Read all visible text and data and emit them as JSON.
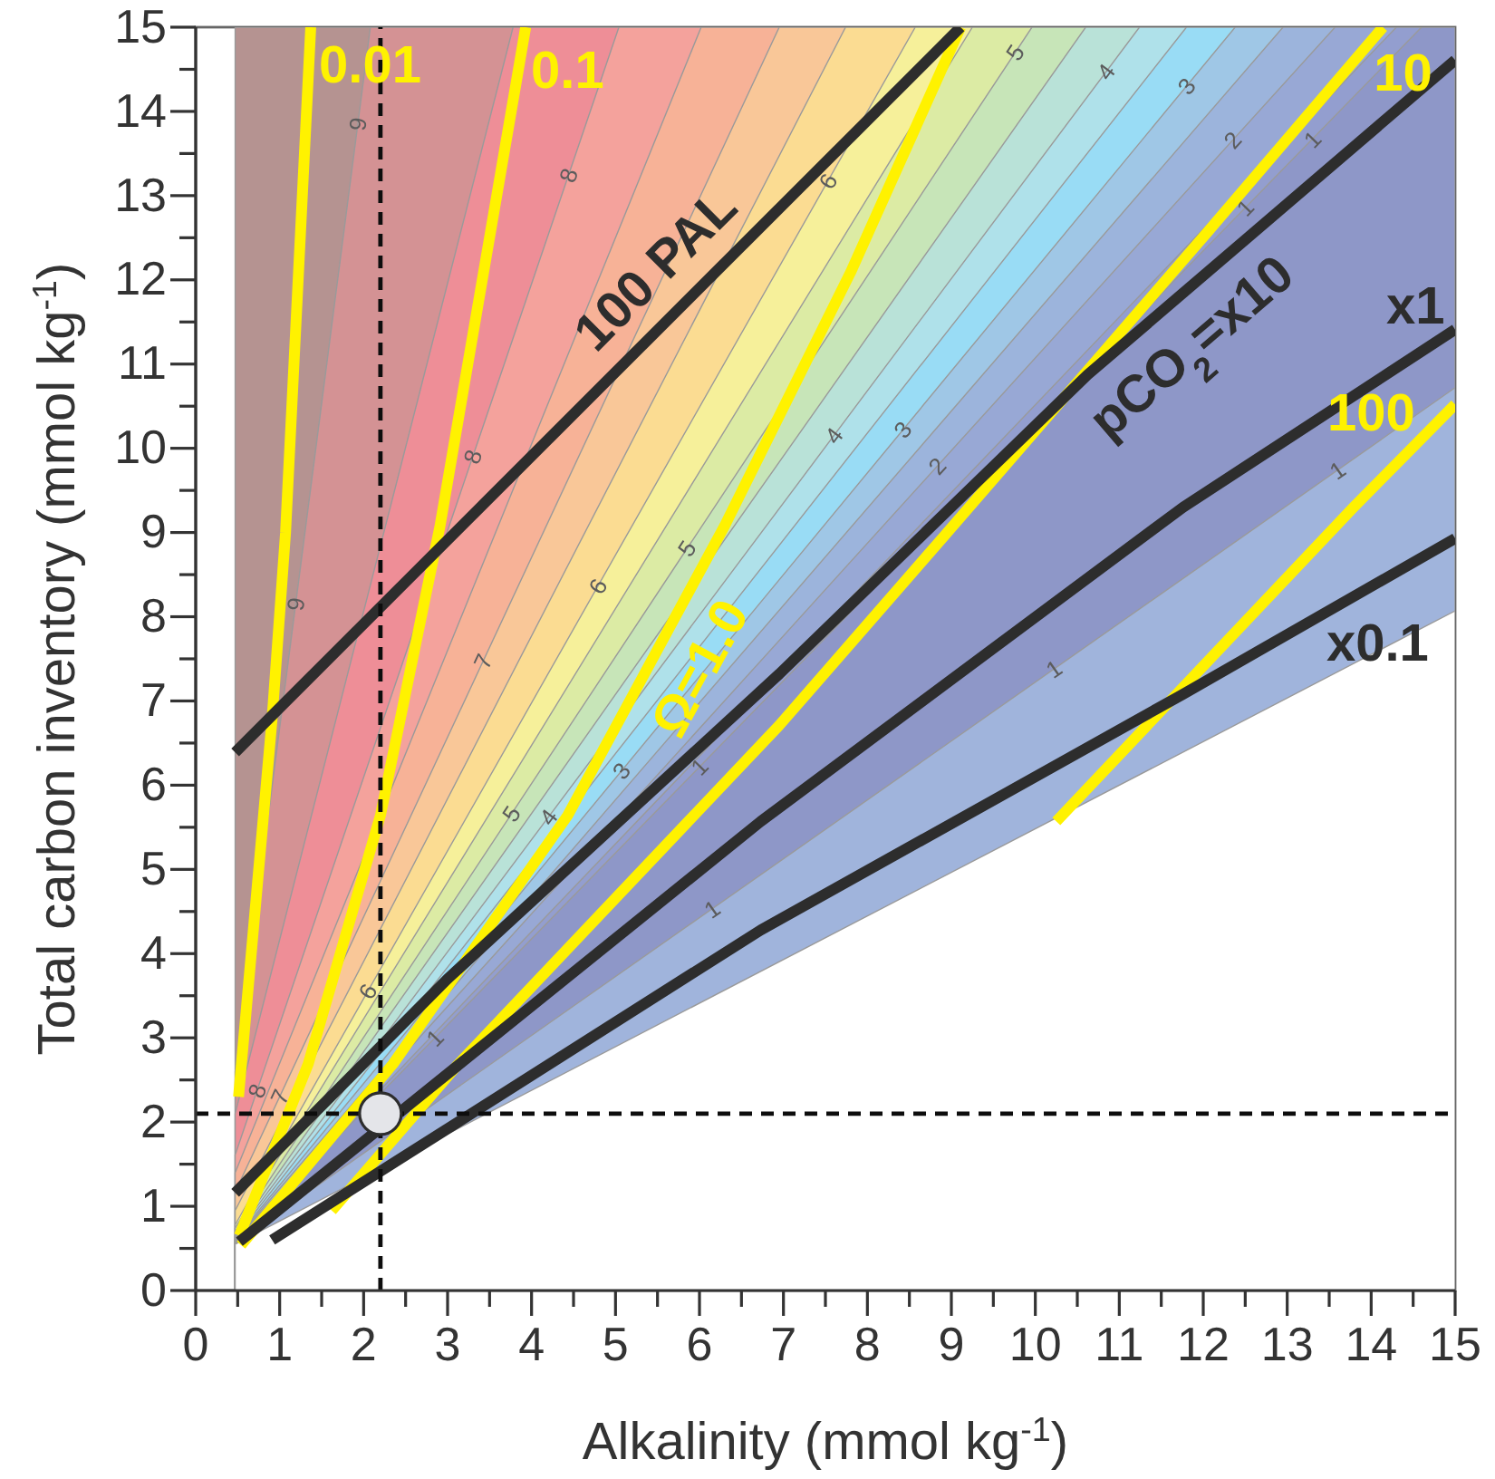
{
  "chart_data": {
    "type": "line",
    "xlabel": "Alkalinity (mmol kg$^{-1}$)",
    "ylabel": "Total carbon inventory (mmol kg$^{-1}$)",
    "xlim": [
      0,
      15
    ],
    "ylim": [
      0,
      15
    ],
    "xticks": [
      0,
      {
        "value": 0.5,
        "label": null
      },
      1,
      {
        "value": 1.5,
        "label": null
      },
      2,
      {
        "value": 2.5,
        "label": null
      },
      3,
      {
        "value": 3.5,
        "label": null
      },
      4,
      {
        "value": 4.5,
        "label": null
      },
      5,
      {
        "value": 5.5,
        "label": null
      },
      6,
      {
        "value": 6.5,
        "label": null
      },
      7,
      {
        "value": 7.5,
        "label": null
      },
      8,
      {
        "value": 8.5,
        "label": null
      },
      9,
      {
        "value": 9.5,
        "label": null
      },
      10,
      {
        "value": 10.5,
        "label": null
      },
      11,
      {
        "value": 11.5,
        "label": null
      },
      12,
      {
        "value": 12.5,
        "label": null
      },
      13,
      {
        "value": 13.5,
        "label": null
      },
      14,
      {
        "value": 14.5,
        "label": null
      },
      15
    ],
    "yticks": [
      0,
      {
        "value": 0.5,
        "label": null
      },
      1,
      {
        "value": 1.5,
        "label": null
      },
      2,
      {
        "value": 2.5,
        "label": null
      },
      3,
      {
        "value": 3.5,
        "label": null
      },
      4,
      {
        "value": 4.5,
        "label": null
      },
      5,
      {
        "value": 5.5,
        "label": null
      },
      6,
      {
        "value": 6.5,
        "label": null
      },
      7,
      {
        "value": 7.5,
        "label": null
      },
      8,
      {
        "value": 8.5,
        "label": null
      },
      9,
      {
        "value": 9.5,
        "label": null
      },
      10,
      {
        "value": 10.5,
        "label": null
      },
      11,
      {
        "value": 11.5,
        "label": null
      },
      12,
      {
        "value": 12.5,
        "label": null
      },
      13,
      {
        "value": 13.5,
        "label": null
      },
      14,
      {
        "value": 14.5,
        "label": null
      },
      15
    ],
    "series": [
      {
        "type": "area",
        "color": "#b59391",
        "x": [
          0.47,
          2.08
        ],
        "values": [
          15,
          15
        ]
      },
      {
        "type": "area",
        "color": "#d49294",
        "x": [
          0.47,
          2.08,
          3.78
        ],
        "values": [
          2.6,
          15,
          15
        ]
      },
      {
        "type": "area",
        "color": "#ee8e97",
        "x": [
          0.47,
          3.78,
          5.04
        ],
        "values": [
          2.1,
          15,
          15
        ]
      },
      {
        "type": "area",
        "color": "#f4a29c",
        "x": [
          0.47,
          5.04,
          6.02
        ],
        "values": [
          1.61,
          15,
          15
        ]
      },
      {
        "type": "area",
        "color": "#f7b297",
        "x": [
          0.47,
          6.02,
          6.95
        ],
        "values": [
          1.4,
          15,
          15
        ]
      },
      {
        "type": "area",
        "color": "#f9c798",
        "x": [
          0.47,
          6.95,
          7.74
        ],
        "values": [
          1.17,
          15,
          15
        ]
      },
      {
        "type": "area",
        "color": "#fbdc92",
        "x": [
          0.47,
          7.74,
          8.57
        ],
        "values": [
          0.95,
          15,
          15
        ]
      },
      {
        "type": "area",
        "color": "#f6f09a",
        "x": [
          0.47,
          8.57,
          9.25
        ],
        "values": [
          0.78,
          15,
          15
        ]
      },
      {
        "type": "area",
        "color": "#dceba4",
        "x": [
          0.47,
          9.25,
          9.96
        ],
        "values": [
          0.74,
          15,
          15
        ]
      },
      {
        "type": "area",
        "color": "#c7e5b8",
        "x": [
          0.47,
          9.96,
          10.6
        ],
        "values": [
          0.7,
          15,
          15
        ]
      },
      {
        "type": "area",
        "color": "#b9e2d8",
        "x": [
          0.47,
          10.6,
          11.24
        ],
        "values": [
          0.67,
          15,
          15
        ]
      },
      {
        "type": "area",
        "color": "#afe1ea",
        "x": [
          0.47,
          11.24,
          11.8
        ],
        "values": [
          0.65,
          15,
          15
        ]
      },
      {
        "type": "area",
        "color": "#99dcf5",
        "x": [
          0.47,
          11.8,
          12.38
        ],
        "values": [
          0.63,
          15,
          15
        ]
      },
      {
        "type": "area",
        "color": "#9fc7e6",
        "x": [
          0.47,
          12.38,
          12.95
        ],
        "values": [
          0.61,
          15,
          15
        ]
      },
      {
        "type": "area",
        "color": "#9cb4dc",
        "x": [
          0.47,
          12.95,
          13.57
        ],
        "values": [
          0.6,
          15,
          15
        ]
      },
      {
        "type": "area",
        "color": "#98a8d5",
        "x": [
          0.47,
          13.57,
          14.3
        ],
        "values": [
          0.59,
          15,
          15
        ]
      },
      {
        "type": "area",
        "color": "#939ecf",
        "x": [
          0.47,
          14.3,
          14.6
        ],
        "values": [
          0.58,
          15,
          15
        ]
      },
      {
        "type": "area",
        "color": "#8e97c8",
        "x": [
          0.47,
          14.6,
          15
        ],
        "values": [
          0.57,
          15,
          15
        ]
      },
      {
        "type": "area",
        "color": "#a0b4dc",
        "x": [
          0.47,
          15
        ],
        "values": [
          0.56,
          10.72
        ]
      },
      {
        "type": "area",
        "color": "#ffffff",
        "x": [
          0.47,
          15
        ],
        "values": [
          0.55,
          8.07
        ]
      },
      {
        "color": "#fff200",
        "x": [
          0.51,
          0.91,
          1.07,
          1.37
        ],
        "values": [
          2.3,
          6.79,
          9.0,
          15
        ]
      },
      {
        "color": "#fff200",
        "x": [
          0.52,
          1.34,
          2.2,
          2.91,
          3.93
        ],
        "values": [
          0.65,
          2.69,
          5.64,
          9.08,
          15
        ]
      },
      {
        "color": "#fff200",
        "x": [
          0.54,
          2.35,
          4.43,
          6.3,
          7.8,
          9.11
        ],
        "values": [
          0.54,
          2.69,
          5.64,
          9.08,
          12.09,
          15
        ]
      },
      {
        "color": "#fff200",
        "x": [
          1.62,
          3.13,
          6.95,
          8.89,
          12.07,
          14.14
        ],
        "values": [
          0.95,
          2.69,
          6.71,
          8.93,
          12.59,
          15
        ]
      },
      {
        "color": "#fff200",
        "x": [
          15,
          13.79,
          10.25
        ],
        "values": [
          10.52,
          9.3,
          5.57
        ]
      },
      {
        "color": "#2d2d2d",
        "x": [
          9.11,
          0.47
        ],
        "values": [
          15,
          6.39
        ]
      },
      {
        "color": "#2d2d2d",
        "x": [
          0.47,
          3.0,
          6.95,
          10.62,
          15
        ],
        "values": [
          1.16,
          3.7,
          7.32,
          10.87,
          14.61
        ]
      },
      {
        "color": "#2d2d2d",
        "x": [
          15,
          11.76,
          6.73,
          0.52
        ],
        "values": [
          11.41,
          9.3,
          5.57,
          0.58
        ]
      },
      {
        "color": "#2d2d2d",
        "x": [
          0.91,
          6.73,
          11.76,
          15
        ],
        "values": [
          0.6,
          4.28,
          7.08,
          8.93
        ]
      },
      {
        "type": "scatter",
        "color": "#e4e5e9",
        "marker": "circle",
        "x": [
          2.2
        ],
        "values": [
          2.1
        ]
      }
    ],
    "ref_lines": [
      {
        "axis": "x",
        "value": 2.2,
        "color": "#0d0d0d",
        "line_style": "dashed"
      },
      {
        "axis": "y",
        "value": 2.1,
        "color": "#0d0d0d",
        "line_style": "dashed"
      }
    ],
    "annotations": [
      {
        "text": "0.01",
        "x": 1.35,
        "y": 14.6
      },
      {
        "text": "0.1",
        "x": 3.86,
        "y": 14.59
      },
      {
        "text": "Ω=1.0",
        "x": 5.52,
        "y": 7.65
      },
      {
        "text": "10",
        "x": 13.98,
        "y": 14.81
      },
      {
        "text": "100",
        "x": 14.46,
        "y": 9.98
      },
      {
        "text": "100 PAL",
        "x": 5.85,
        "y": 11.75
      },
      {
        "text": "pCO$_{2}$=x10",
        "x": 11.5,
        "y": 11.62
      },
      {
        "text": "x1",
        "x": 14.8,
        "y": 11.28
      },
      {
        "text": "x0.1",
        "x": 13.77,
        "y": 8.23
      },
      {
        "text": "9",
        "x": 1.93,
        "y": 13.85
      },
      {
        "text": "8",
        "x": 4.44,
        "y": 13.24
      },
      {
        "text": "6",
        "x": 7.53,
        "y": 13.17
      },
      {
        "text": "5",
        "x": 9.76,
        "y": 14.7
      },
      {
        "text": "4",
        "x": 10.84,
        "y": 14.47
      },
      {
        "text": "3",
        "x": 11.8,
        "y": 14.3
      },
      {
        "text": "2",
        "x": 12.35,
        "y": 13.66
      },
      {
        "text": "1",
        "x": 13.3,
        "y": 13.67
      },
      {
        "text": "9",
        "x": 1.19,
        "y": 8.15
      },
      {
        "text": "8",
        "x": 3.3,
        "y": 9.9
      },
      {
        "text": "7",
        "x": 3.42,
        "y": 7.47
      },
      {
        "text": "6",
        "x": 4.79,
        "y": 8.36
      },
      {
        "text": "5",
        "x": 5.85,
        "y": 8.81
      },
      {
        "text": "4",
        "x": 7.6,
        "y": 10.15
      },
      {
        "text": "3",
        "x": 8.42,
        "y": 10.22
      },
      {
        "text": "2",
        "x": 8.83,
        "y": 9.79
      },
      {
        "text": "1",
        "x": 12.5,
        "y": 12.86
      },
      {
        "text": "1",
        "x": 13.6,
        "y": 9.74
      },
      {
        "text": "5",
        "x": 3.76,
        "y": 5.66
      },
      {
        "text": "4",
        "x": 4.2,
        "y": 5.62
      },
      {
        "text": "3",
        "x": 5.07,
        "y": 6.17
      },
      {
        "text": "1",
        "x": 6.0,
        "y": 6.22
      },
      {
        "text": "1",
        "x": 6.15,
        "y": 4.53
      },
      {
        "text": "6",
        "x": 2.05,
        "y": 3.55
      },
      {
        "text": "1",
        "x": 2.85,
        "y": 3.0
      },
      {
        "text": "1",
        "x": 10.22,
        "y": 7.38
      },
      {
        "text": "8",
        "x": 0.73,
        "y": 2.37
      },
      {
        "text": "7",
        "x": 1.0,
        "y": 2.3
      }
    ]
  }
}
